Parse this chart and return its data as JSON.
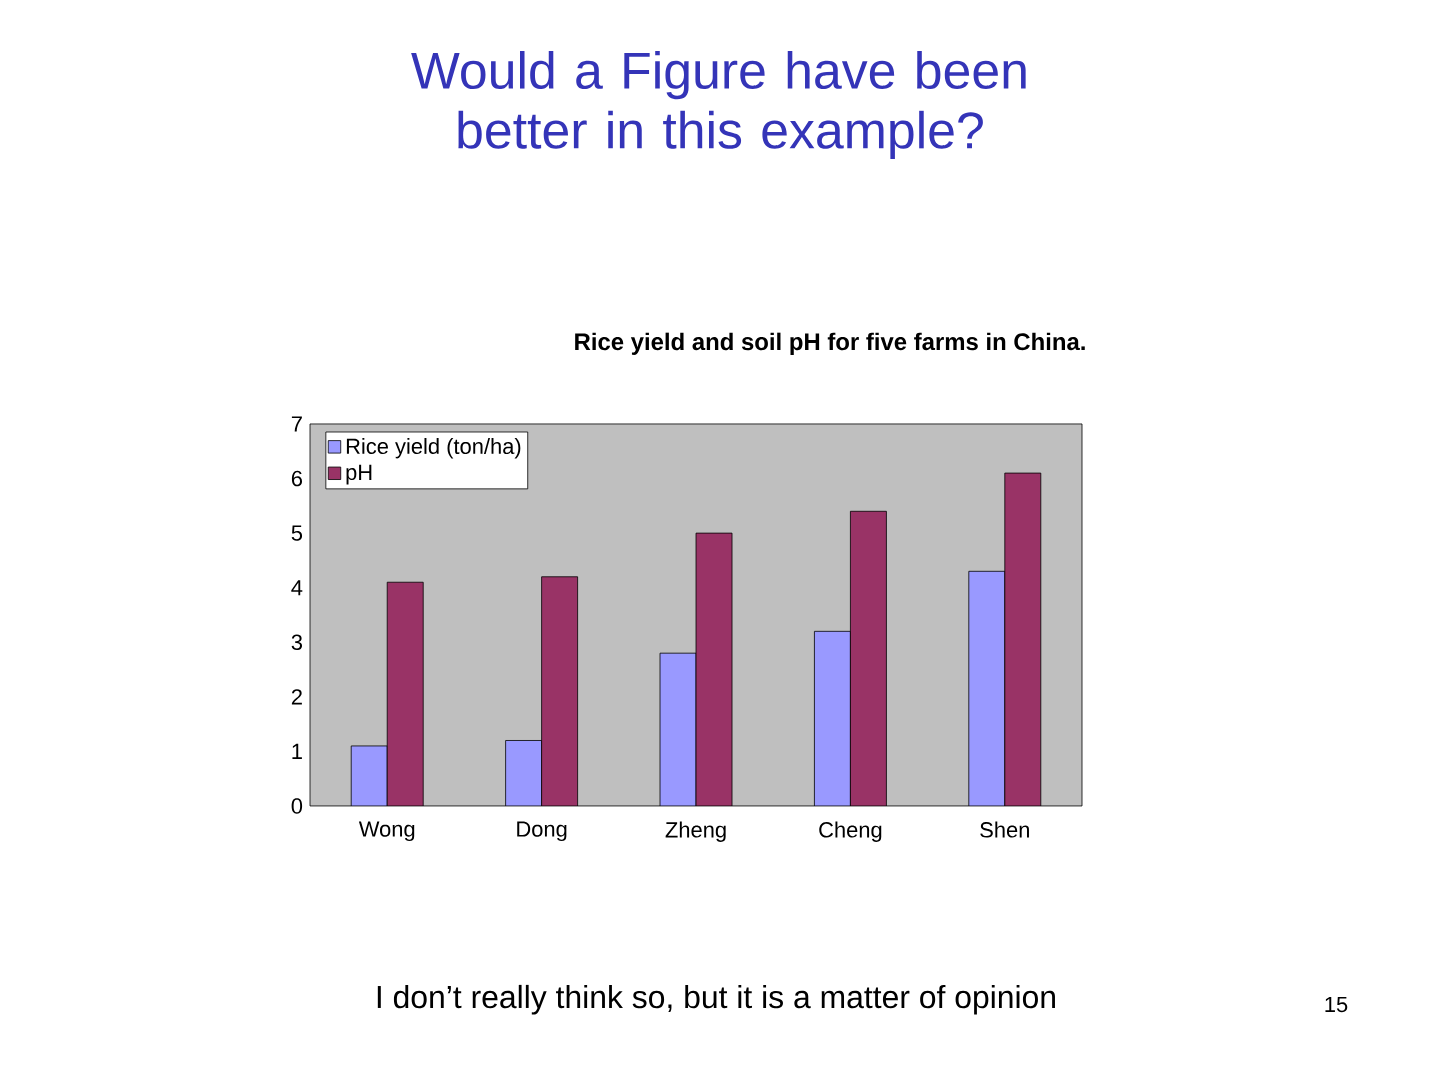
{
  "chart_data": {
    "type": "bar",
    "title": "Would a Figure have been better in this example?",
    "subtitle": "Rice yield and soil pH for five farms in China.",
    "categories": [
      "Wong",
      "Dong",
      "Zheng",
      "Cheng",
      "Shen"
    ],
    "series": [
      {
        "name": "Rice yield (ton/ha)",
        "color": "#9999ff",
        "values": [
          1.1,
          1.2,
          2.8,
          3.2,
          4.3
        ]
      },
      {
        "name": "pH",
        "color": "#993366",
        "values": [
          4.1,
          4.2,
          5.0,
          5.4,
          6.1
        ]
      }
    ],
    "ylim": [
      0,
      7
    ],
    "yticks": [
      0,
      1,
      2,
      3,
      4,
      5,
      6,
      7
    ],
    "grid": false,
    "legend": "top left",
    "annotations": [
      "I don’t really think so, but it is a matter of opinion",
      "15"
    ]
  }
}
